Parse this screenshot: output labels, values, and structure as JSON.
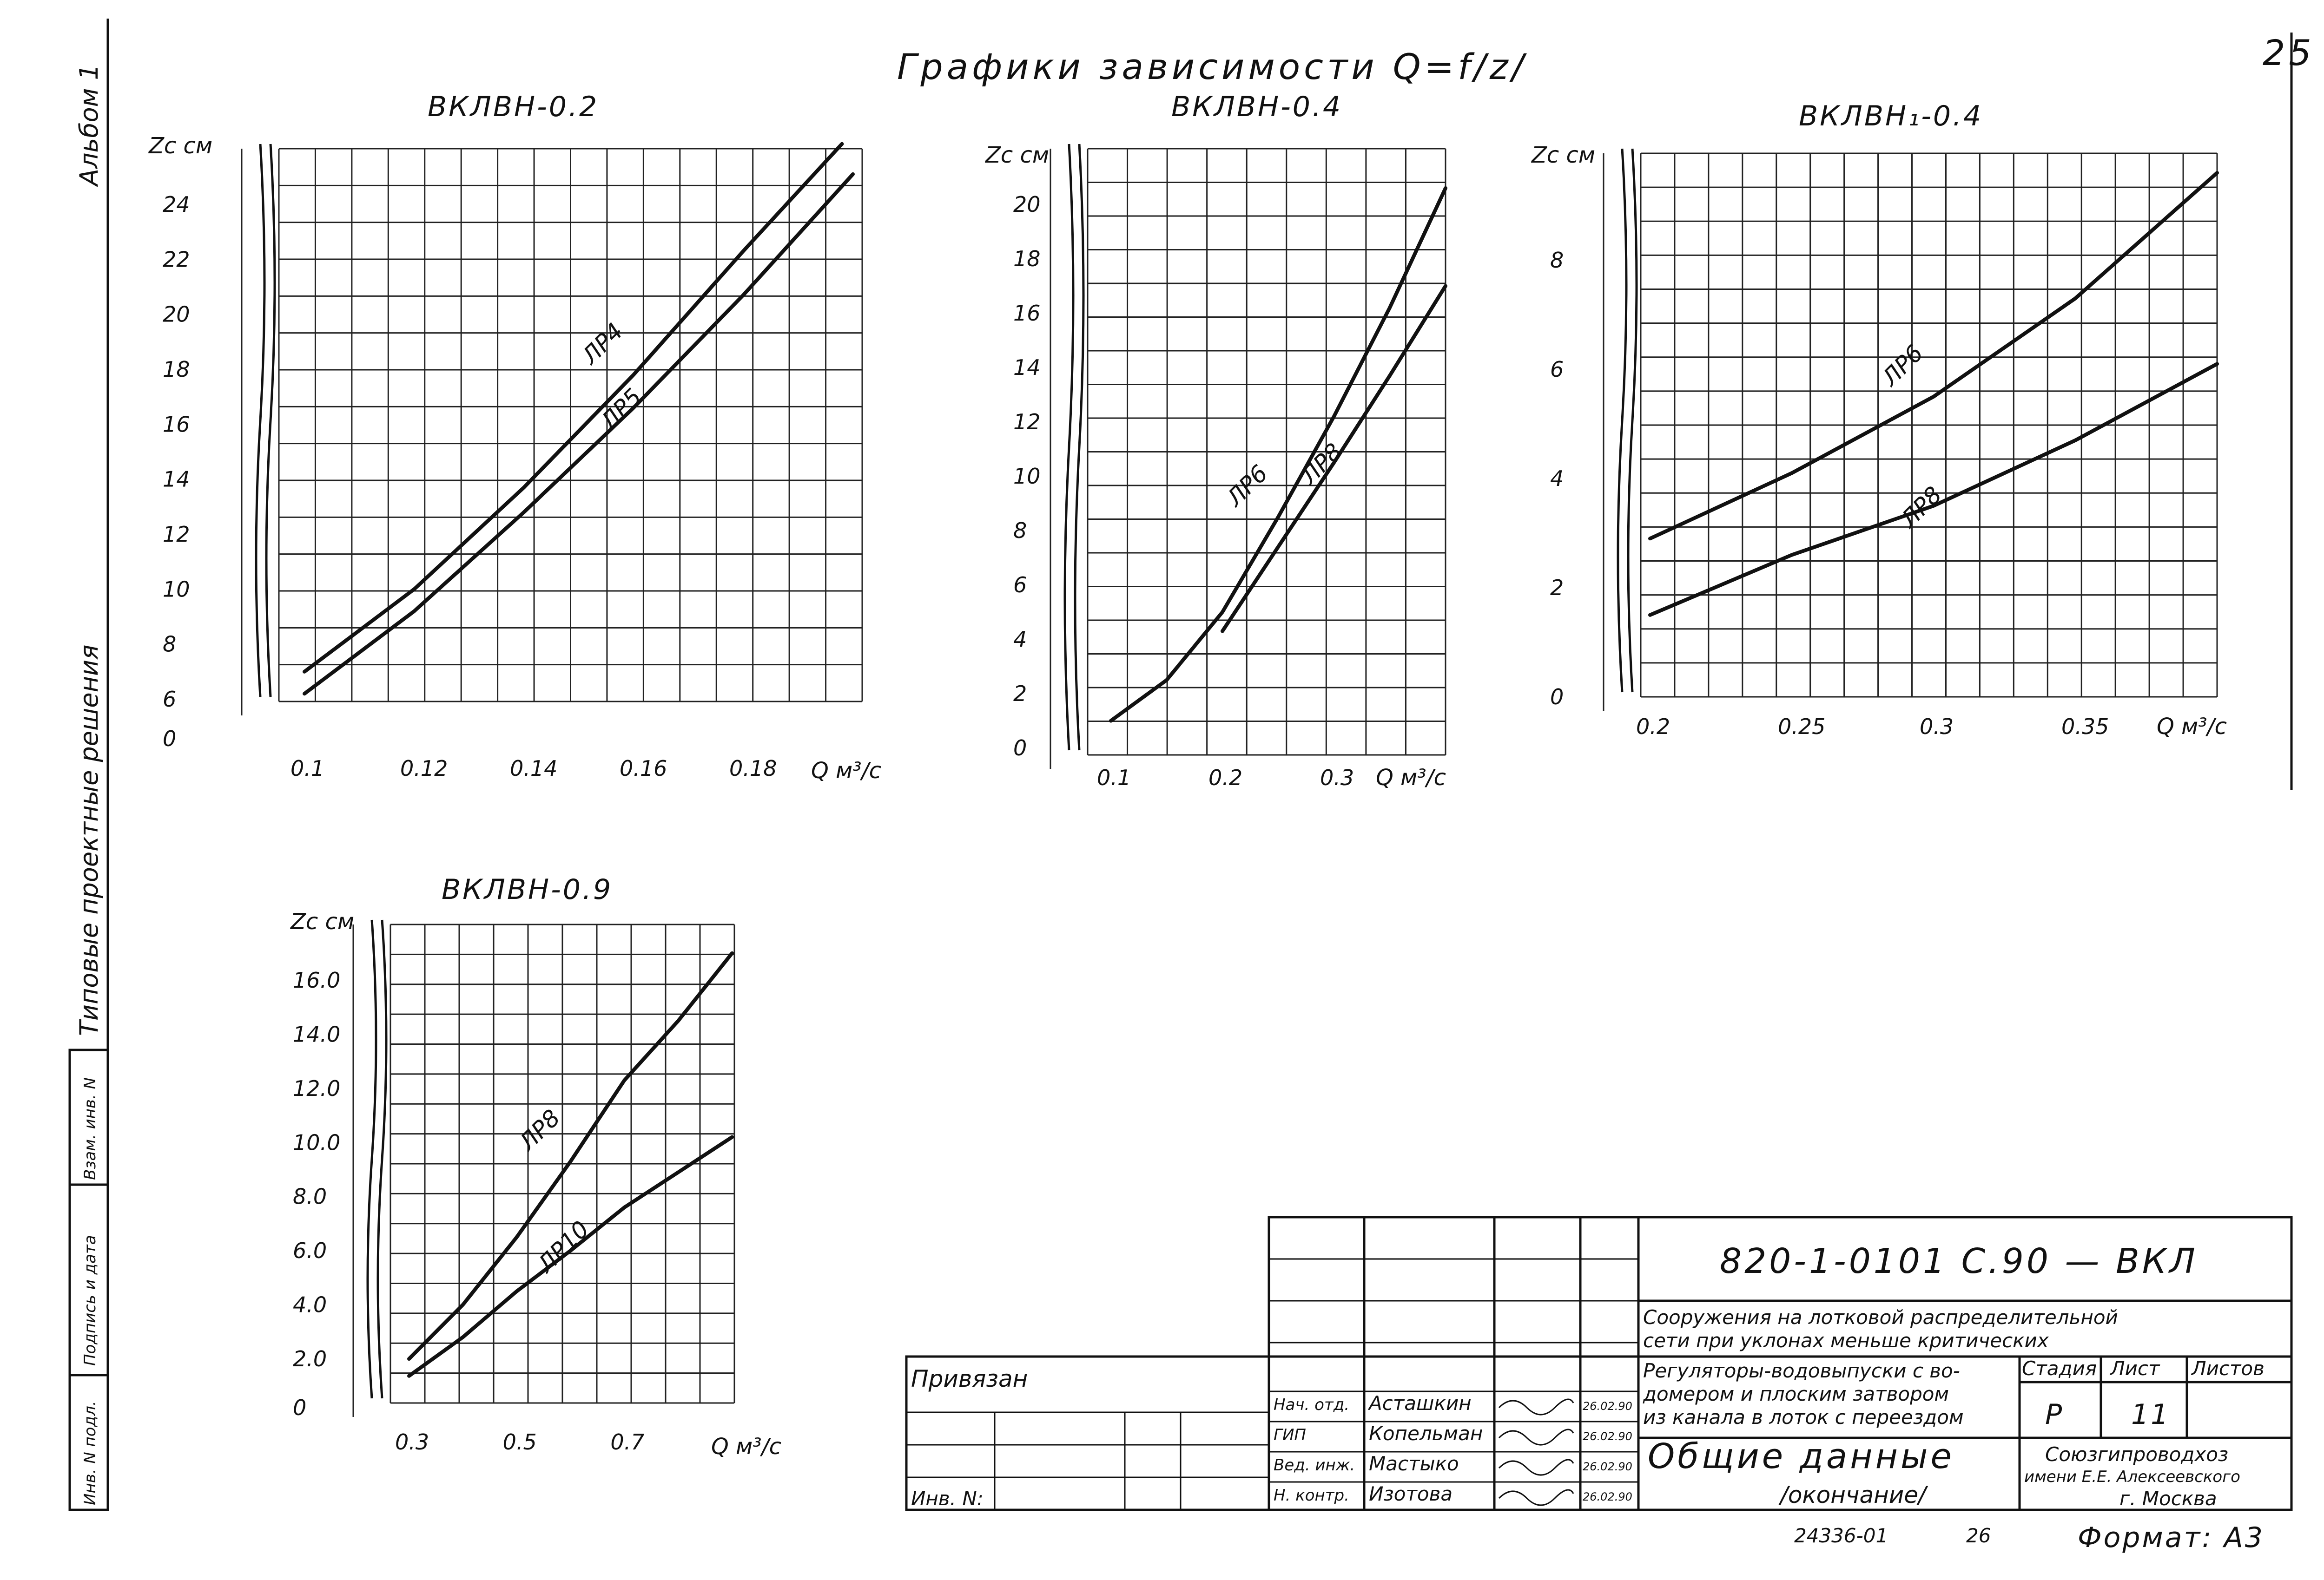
{
  "title": "Графики зависимости Q=f/z/",
  "page_number": "25",
  "sidebar": {
    "album": "Альбом 1",
    "solutions": "Типовые проектные решения",
    "row1": "Инв. N подл.",
    "row2": "Подпись и дата",
    "row3": "Взам. инв. N"
  },
  "chart_data": [
    {
      "type": "line",
      "title": "ВКЛВН-0.2",
      "ylabel": "Zc см",
      "xlabel": "Q м³/с",
      "xticks": [
        "0.1",
        "0.12",
        "0.14",
        "0.16",
        "0.18"
      ],
      "yticks": [
        "0",
        "6",
        "8",
        "10",
        "12",
        "14",
        "16",
        "18",
        "20",
        "22",
        "24"
      ],
      "grid": true,
      "series": [
        {
          "name": "ЛР4",
          "x": [
            0.1,
            0.12,
            0.14,
            0.16,
            0.18,
            0.198
          ],
          "y": [
            7.0,
            10.0,
            13.7,
            17.8,
            22.3,
            26.2
          ]
        },
        {
          "name": "ЛР5",
          "x": [
            0.1,
            0.12,
            0.14,
            0.16,
            0.18,
            0.2
          ],
          "y": [
            6.2,
            9.2,
            12.8,
            16.6,
            20.7,
            25.1
          ]
        }
      ]
    },
    {
      "type": "line",
      "title": "ВКЛВН-0.4",
      "ylabel": "Zc см",
      "xlabel": "Q м³/с",
      "xticks": [
        "0.1",
        "0.2",
        "0.3"
      ],
      "yticks": [
        "0",
        "2",
        "4",
        "6",
        "8",
        "10",
        "12",
        "14",
        "16",
        "18",
        "20"
      ],
      "grid": true,
      "series": [
        {
          "name": "ЛР6",
          "x": [
            0.1,
            0.15,
            0.2,
            0.25,
            0.3,
            0.35,
            0.4
          ],
          "y": [
            1.0,
            2.5,
            5.0,
            8.5,
            12.2,
            16.2,
            20.6
          ]
        },
        {
          "name": "ЛР8",
          "x": [
            0.2,
            0.25,
            0.3,
            0.35,
            0.4
          ],
          "y": [
            4.3,
            7.4,
            10.5,
            13.7,
            17.0
          ]
        }
      ]
    },
    {
      "type": "line",
      "title": "ВКЛВН₁-0.4",
      "ylabel": "Zc см",
      "xlabel": "Q м³/с",
      "xticks": [
        "0.2",
        "0.25",
        "0.3",
        "0.35"
      ],
      "yticks": [
        "0",
        "2",
        "4",
        "6",
        "8"
      ],
      "grid": true,
      "series": [
        {
          "name": "ЛР6",
          "x": [
            0.2,
            0.25,
            0.3,
            0.35,
            0.4
          ],
          "y": [
            2.9,
            4.1,
            5.5,
            7.3,
            9.6
          ]
        },
        {
          "name": "ЛР8",
          "x": [
            0.2,
            0.25,
            0.3,
            0.35,
            0.4
          ],
          "y": [
            1.5,
            2.6,
            3.5,
            4.7,
            6.1
          ]
        }
      ]
    },
    {
      "type": "line",
      "title": "ВКЛВН-0.9",
      "ylabel": "Zc см",
      "xlabel": "Q м³/с",
      "xticks": [
        "0.3",
        "0.5",
        "0.7"
      ],
      "yticks": [
        "0",
        "2.0",
        "4.0",
        "6.0",
        "8.0",
        "10.0",
        "12.0",
        "14.0",
        "16.0"
      ],
      "grid": true,
      "series": [
        {
          "name": "ЛР8",
          "x": [
            0.3,
            0.4,
            0.5,
            0.6,
            0.7,
            0.8,
            0.9
          ],
          "y": [
            2.0,
            4.0,
            6.5,
            9.3,
            12.3,
            14.5,
            17.0
          ]
        },
        {
          "name": "ЛР10",
          "x": [
            0.3,
            0.4,
            0.5,
            0.6,
            0.7,
            0.8,
            0.9
          ],
          "y": [
            1.3,
            2.8,
            4.5,
            6.0,
            7.6,
            8.9,
            10.2
          ]
        }
      ]
    }
  ],
  "title_block": {
    "code": "820-1-0101 С.90 — ВКЛ",
    "project_line1": "Сооружения на лотковой распределительной",
    "project_line2": "сети при уклонах меньше критических",
    "desc_line1": "Регуляторы-водовыпуски с во-",
    "desc_line2": "домером и плоским затвором",
    "desc_line3": "из канала в лоток с переездом",
    "sheet_title_1": "Общие данные",
    "sheet_title_2": "/окончание/",
    "stage_header": "Стадия",
    "sheet_header": "Лист",
    "sheets_header": "Листов",
    "stage": "Р",
    "sheet": "11",
    "org_line1": "Союзгипроводхоз",
    "org_line2": "имени Е.Е. Алексеевского",
    "org_line3": "г. Москва",
    "privyazan": "Привязан",
    "inv_no": "Инв. N:",
    "format": "Формат: А3",
    "archive": "24336-01",
    "archive_sheet": "26",
    "staff": [
      {
        "role": "Нач. отд.",
        "name": "Асташкин",
        "date": "26.02.90"
      },
      {
        "role": "ГИП",
        "name": "Копельман",
        "date": "26.02.90"
      },
      {
        "role": "Вед. инж.",
        "name": "Мастыко",
        "date": "26.02.90"
      },
      {
        "role": "Н. контр.",
        "name": "Изотова",
        "date": "26.02.90"
      }
    ]
  }
}
